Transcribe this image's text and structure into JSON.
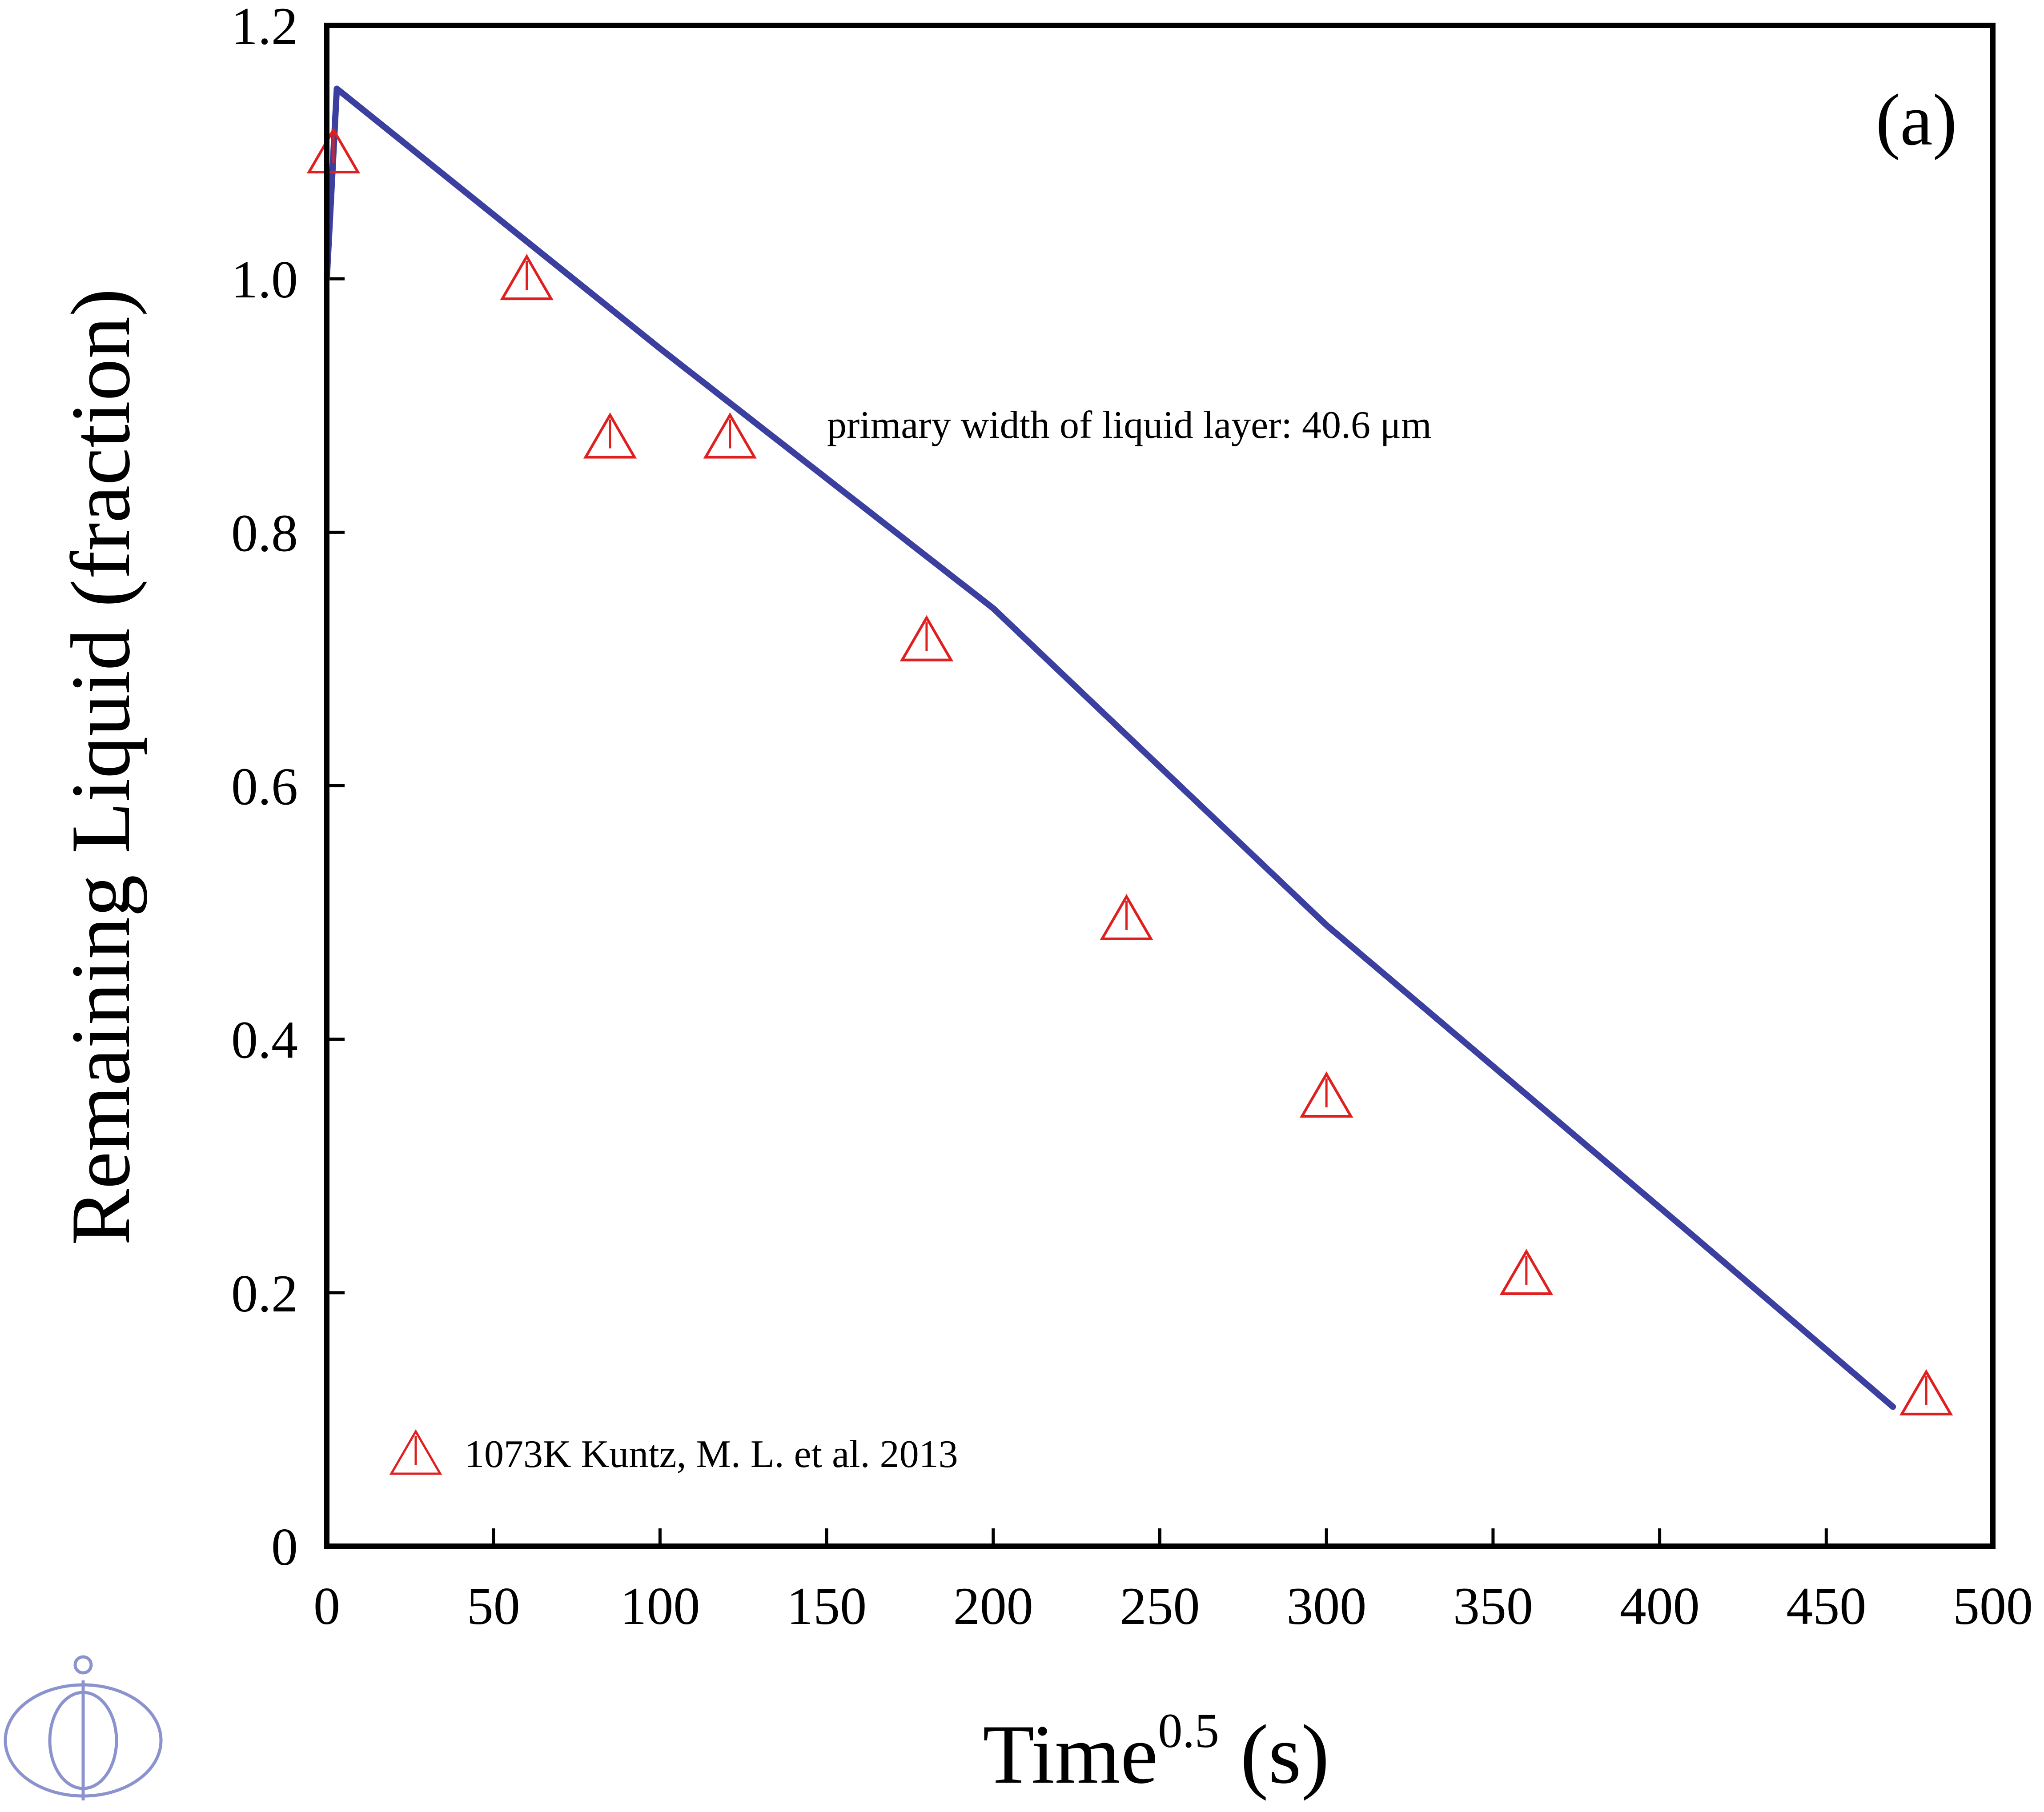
{
  "chart_data": {
    "type": "scatter",
    "xlabel": "Time",
    "xlabel_superscript": "0.5",
    "xlabel_unit": " (s)",
    "ylabel": "Remaining Liquid (fraction)",
    "xlim": [
      0,
      500
    ],
    "ylim": [
      0,
      1.2
    ],
    "x_ticks": [
      0,
      50,
      100,
      150,
      200,
      250,
      300,
      350,
      400,
      450,
      500
    ],
    "x_tick_labels": [
      "0",
      "50",
      "100",
      "150",
      "200",
      "250",
      "300",
      "350",
      "400",
      "450",
      "500"
    ],
    "y_ticks": [
      0,
      0.2,
      0.4,
      0.6,
      0.8,
      1.0,
      1.2
    ],
    "y_tick_labels": [
      "0",
      "0.2",
      "0.4",
      "0.6",
      "0.8",
      "1.0",
      "1.2"
    ],
    "panel_label": "(a)",
    "annotation": "primary width of liquid layer: 40.6 μm",
    "grid": false,
    "legend_position": "bottom-left",
    "series": [
      {
        "kind": "line",
        "color": "#3b3fa0",
        "x": [
          0,
          3,
          100,
          200,
          300,
          410,
          470
        ],
        "y": [
          1.0,
          1.15,
          0.945,
          0.74,
          0.49,
          0.245,
          0.11
        ]
      },
      {
        "name": "1073K Kuntz, M. L. et al. 2013",
        "kind": "scatter",
        "marker": "triangle-open",
        "color": "#e02020",
        "x": [
          2,
          60,
          85,
          121,
          180,
          240,
          300,
          360,
          480
        ],
        "y": [
          1.1,
          1.0,
          0.875,
          0.875,
          0.715,
          0.495,
          0.355,
          0.215,
          0.12
        ]
      }
    ]
  },
  "logo": {
    "name": "publisher-logo-icon",
    "color": "#8b93cf"
  }
}
